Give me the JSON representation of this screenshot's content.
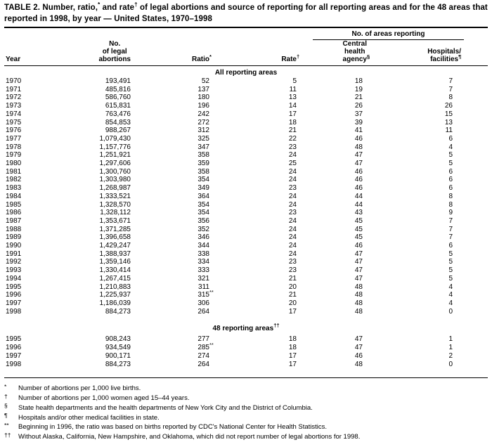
{
  "page": {
    "background": "#ffffff",
    "text_color": "#000000"
  },
  "title": {
    "line1_part1": "TABLE 2. Number, ratio,",
    "line1_sup1": "*",
    "line1_part2": " and rate",
    "line1_sup2": "†",
    "line1_part3": " of legal abortions and source of reporting for all reporting areas and for the 48 areas that",
    "line2": "reported in 1998, by year — United States, 1970–1998"
  },
  "columns": {
    "year": "Year",
    "abortions": [
      "No.",
      "of legal",
      "abortions"
    ],
    "ratio": "Ratio",
    "ratio_mark": "*",
    "rate": "Rate",
    "rate_mark": "†",
    "spanner": "No. of areas reporting",
    "central": [
      "Central",
      "health",
      "agency"
    ],
    "central_mark": "§",
    "hospitals": [
      "Hospitals/",
      "facilities"
    ],
    "hospitals_mark": "¶"
  },
  "table": {
    "sections": [
      {
        "label": "All reporting areas",
        "label_mark": "",
        "rows": [
          [
            "1970",
            "193,491",
            "52",
            "5",
            "18",
            "7"
          ],
          [
            "1971",
            "485,816",
            "137",
            "11",
            "19",
            "7"
          ],
          [
            "1972",
            "586,760",
            "180",
            "13",
            "21",
            "8"
          ],
          [
            "1973",
            "615,831",
            "196",
            "14",
            "26",
            "26"
          ],
          [
            "1974",
            "763,476",
            "242",
            "17",
            "37",
            "15"
          ],
          [
            "1975",
            "854,853",
            "272",
            "18",
            "39",
            "13"
          ],
          [
            "1976",
            "988,267",
            "312",
            "21",
            "41",
            "11"
          ],
          [
            "1977",
            "1,079,430",
            "325",
            "22",
            "46",
            "6"
          ],
          [
            "1978",
            "1,157,776",
            "347",
            "23",
            "48",
            "4"
          ],
          [
            "1979",
            "1,251,921",
            "358",
            "24",
            "47",
            "5"
          ],
          [
            "1980",
            "1,297,606",
            "359",
            "25",
            "47",
            "5"
          ],
          [
            "1981",
            "1,300,760",
            "358",
            "24",
            "46",
            "6"
          ],
          [
            "1982",
            "1,303,980",
            "354",
            "24",
            "46",
            "6"
          ],
          [
            "1983",
            "1,268,987",
            "349",
            "23",
            "46",
            "6"
          ],
          [
            "1984",
            "1,333,521",
            "364",
            "24",
            "44",
            "8"
          ],
          [
            "1985",
            "1,328,570",
            "354",
            "24",
            "44",
            "8"
          ],
          [
            "1986",
            "1,328,112",
            "354",
            "23",
            "43",
            "9"
          ],
          [
            "1987",
            "1,353,671",
            "356",
            "24",
            "45",
            "7"
          ],
          [
            "1988",
            "1,371,285",
            "352",
            "24",
            "45",
            "7"
          ],
          [
            "1989",
            "1,396,658",
            "346",
            "24",
            "45",
            "7"
          ],
          [
            "1990",
            "1,429,247",
            "344",
            "24",
            "46",
            "6"
          ],
          [
            "1991",
            "1,388,937",
            "338",
            "24",
            "47",
            "5"
          ],
          [
            "1992",
            "1,359,146",
            "334",
            "23",
            "47",
            "5"
          ],
          [
            "1993",
            "1,330,414",
            "333",
            "23",
            "47",
            "5"
          ],
          [
            "1994",
            "1,267,415",
            "321",
            "21",
            "47",
            "5"
          ],
          [
            "1995",
            "1,210,883",
            "311",
            "20",
            "48",
            "4"
          ],
          [
            "1996",
            "1,225,937",
            "315**",
            "21",
            "48",
            "4"
          ],
          [
            "1997",
            "1,186,039",
            "306",
            "20",
            "48",
            "4"
          ],
          [
            "1998",
            "884,273",
            "264",
            "17",
            "48",
            "0"
          ]
        ]
      },
      {
        "label": "48 reporting areas",
        "label_mark": "††",
        "rows": [
          [
            "1995",
            "908,243",
            "277",
            "18",
            "47",
            "1"
          ],
          [
            "1996",
            "934,549",
            "285**",
            "18",
            "47",
            "1"
          ],
          [
            "1997",
            "900,171",
            "274",
            "17",
            "46",
            "2"
          ],
          [
            "1998",
            "884,273",
            "264",
            "17",
            "48",
            "0"
          ]
        ]
      }
    ]
  },
  "footnotes": [
    {
      "mark": "*",
      "text": "Number of abortions per 1,000 live births."
    },
    {
      "mark": "†",
      "text": "Number of abortions per 1,000 women aged 15–44 years."
    },
    {
      "mark": "§",
      "text": "State health departments and the health departments of New York City and the District of Columbia."
    },
    {
      "mark": "¶",
      "text": "Hospitals and/or other medical facilities in state."
    },
    {
      "mark": "**",
      "text": "Beginning in 1996, the ratio was based on births reported by CDC's National Center for Health Statistics."
    },
    {
      "mark": "††",
      "text": "Without Alaska, California, New Hampshire, and Oklahoma, which did not report number of legal abortions for 1998."
    }
  ]
}
